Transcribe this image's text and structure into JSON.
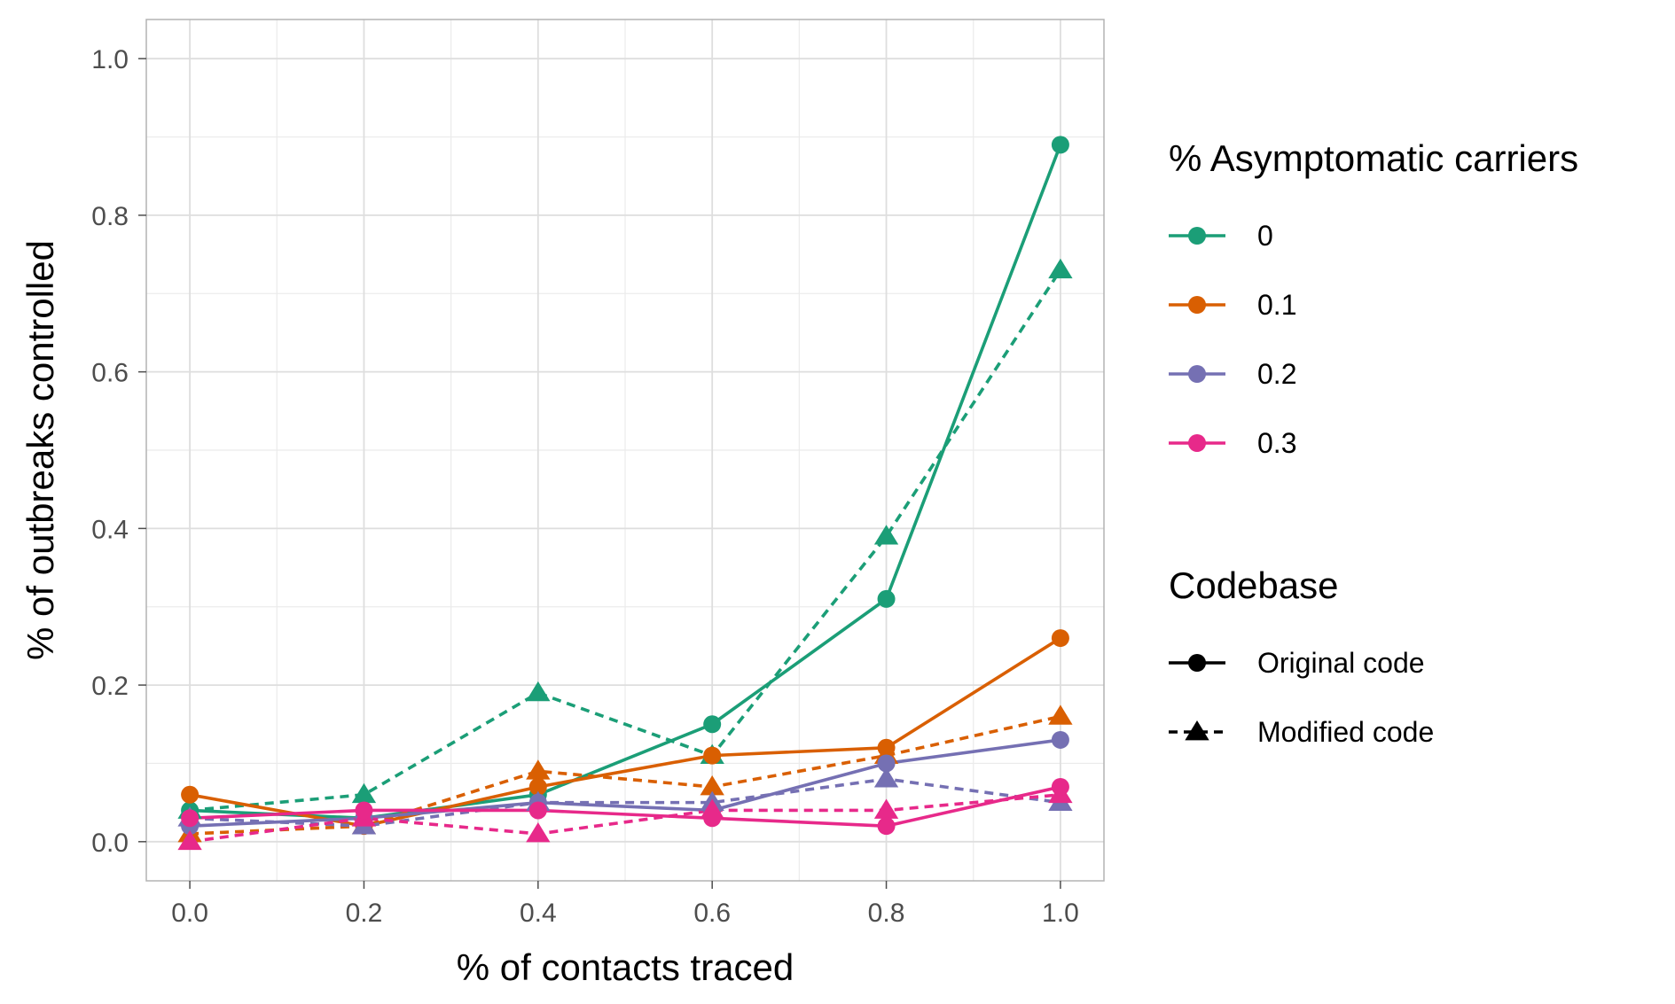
{
  "chart_data": {
    "type": "line",
    "title": "",
    "xlabel": "% of contacts traced",
    "ylabel": "% of outbreaks controlled",
    "xlim": [
      -0.05,
      1.05
    ],
    "ylim": [
      -0.05,
      1.05
    ],
    "x": [
      0.0,
      0.2,
      0.4,
      0.6,
      0.8,
      1.0
    ],
    "x_ticks": [
      0.0,
      0.2,
      0.4,
      0.6,
      0.8,
      1.0
    ],
    "x_tick_labels": [
      "0.0",
      "0.2",
      "0.4",
      "0.6",
      "0.8",
      "1.0"
    ],
    "y_ticks": [
      0.0,
      0.2,
      0.4,
      0.6,
      0.8,
      1.0
    ],
    "y_tick_labels": [
      "0.0",
      "0.2",
      "0.4",
      "0.6",
      "0.8",
      "1.0"
    ],
    "grid": true,
    "legend_position": "right",
    "color_legend": {
      "title": "% Asymptomatic carriers",
      "entries": [
        {
          "label": "0",
          "color": "#1b9e77"
        },
        {
          "label": "0.1",
          "color": "#d95f02"
        },
        {
          "label": "0.2",
          "color": "#7570b3"
        },
        {
          "label": "0.3",
          "color": "#e7298a"
        }
      ]
    },
    "shape_legend": {
      "title": "Codebase",
      "entries": [
        {
          "label": "Original code",
          "linetype": "solid",
          "shape": "circle"
        },
        {
          "label": "Modified code",
          "linetype": "dashed",
          "shape": "triangle"
        }
      ]
    },
    "series": [
      {
        "name": "0 — Original code",
        "group": "0",
        "codebase": "Original code",
        "color": "#1b9e77",
        "values": [
          0.04,
          0.03,
          0.06,
          0.15,
          0.31,
          0.89
        ]
      },
      {
        "name": "0 — Modified code",
        "group": "0",
        "codebase": "Modified code",
        "color": "#1b9e77",
        "values": [
          0.04,
          0.06,
          0.19,
          0.11,
          0.39,
          0.73
        ]
      },
      {
        "name": "0.1 — Original code",
        "group": "0.1",
        "codebase": "Original code",
        "color": "#d95f02",
        "values": [
          0.06,
          0.02,
          0.07,
          0.11,
          0.12,
          0.26
        ]
      },
      {
        "name": "0.1 — Modified code",
        "group": "0.1",
        "codebase": "Modified code",
        "color": "#d95f02",
        "values": [
          0.01,
          0.02,
          0.09,
          0.07,
          0.11,
          0.16
        ]
      },
      {
        "name": "0.2 — Original code",
        "group": "0.2",
        "codebase": "Original code",
        "color": "#7570b3",
        "values": [
          0.02,
          0.03,
          0.05,
          0.04,
          0.1,
          0.13
        ]
      },
      {
        "name": "0.2 — Modified code",
        "group": "0.2",
        "codebase": "Modified code",
        "color": "#7570b3",
        "values": [
          0.03,
          0.02,
          0.05,
          0.05,
          0.08,
          0.05
        ]
      },
      {
        "name": "0.3 — Original code",
        "group": "0.3",
        "codebase": "Original code",
        "color": "#e7298a",
        "values": [
          0.03,
          0.04,
          0.04,
          0.03,
          0.02,
          0.07
        ]
      },
      {
        "name": "0.3 — Modified code",
        "group": "0.3",
        "codebase": "Modified code",
        "color": "#e7298a",
        "values": [
          0.0,
          0.03,
          0.01,
          0.04,
          0.04,
          0.06
        ]
      }
    ]
  }
}
